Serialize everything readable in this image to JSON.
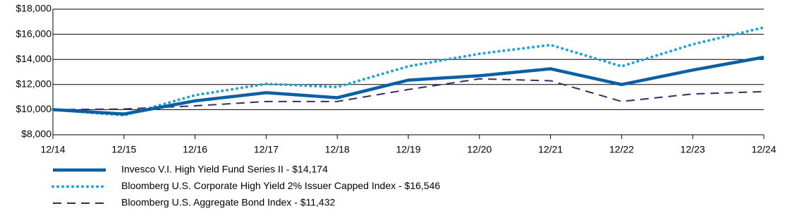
{
  "chart_data": {
    "type": "line",
    "categories": [
      "12/14",
      "12/15",
      "12/16",
      "12/17",
      "12/18",
      "12/19",
      "12/20",
      "12/21",
      "12/22",
      "12/23",
      "12/24"
    ],
    "series": [
      {
        "name": "Invesco V.I. High Yield Fund Series II - $14,174",
        "color": "#0b5fa5",
        "style": "solid",
        "values": [
          10000,
          9650,
          10700,
          11350,
          10950,
          12350,
          12700,
          13250,
          12000,
          13150,
          14174
        ]
      },
      {
        "name": "Bloomberg U.S. Corporate High Yield 2% Issuer Capped Index - $16,546",
        "color": "#1ea3d9",
        "style": "dotted",
        "values": [
          10000,
          9550,
          11150,
          12050,
          11800,
          13450,
          14450,
          15150,
          13450,
          15200,
          16546
        ]
      },
      {
        "name": "Bloomberg U.S. Aggregate Bond Index - $11,432",
        "color": "#3b2a6a",
        "style": "dashed",
        "values": [
          10000,
          10050,
          10300,
          10650,
          10650,
          11600,
          12450,
          12300,
          10650,
          11250,
          11432
        ]
      }
    ],
    "ylim": [
      8000,
      18000
    ],
    "yticks": [
      {
        "value": 8000,
        "label": "$8,000"
      },
      {
        "value": 10000,
        "label": "$10,000"
      },
      {
        "value": 12000,
        "label": "$12,000"
      },
      {
        "value": 14000,
        "label": "$14,000"
      },
      {
        "value": 16000,
        "label": "$16,000"
      },
      {
        "value": 18000,
        "label": "$18,000"
      }
    ],
    "grid": true
  }
}
